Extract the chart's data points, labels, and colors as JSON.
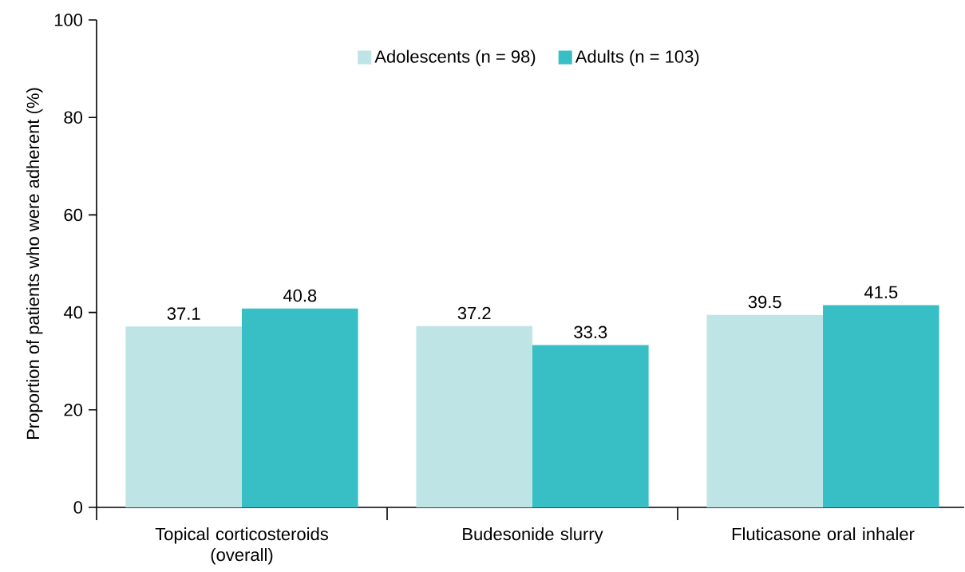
{
  "chart_data": {
    "type": "bar",
    "ylabel": "Proportion of patients who were adherent (%)",
    "categories": [
      "Topical corticosteroids (overall)",
      "Budesonide slurry",
      "Fluticasone oral inhaler"
    ],
    "series": [
      {
        "name": "Adolescents (n = 98)",
        "color": "#bfe4e6",
        "values": [
          37.1,
          37.2,
          39.5
        ]
      },
      {
        "name": "Adults (n = 103)",
        "color": "#38bfc6",
        "values": [
          40.8,
          33.3,
          41.5
        ]
      }
    ],
    "ylim": [
      0,
      100
    ],
    "yticks": [
      0,
      20,
      40,
      60,
      80,
      100
    ],
    "data_labels": true,
    "legend": "top"
  }
}
